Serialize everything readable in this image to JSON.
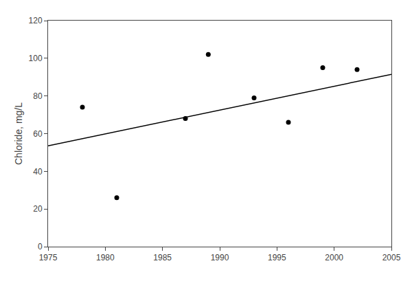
{
  "chart_data": {
    "type": "scatter",
    "ylabel": "Chloride, mg/L",
    "series": [
      {
        "type": "scatter",
        "color": "black",
        "marker": "circle",
        "x": [
          1978,
          1981,
          1987,
          1989,
          1993,
          1996,
          1999,
          2002
        ],
        "values": [
          74,
          26,
          68,
          102,
          79,
          66,
          95,
          94
        ]
      },
      {
        "type": "line",
        "color": "black",
        "line_style": "solid",
        "x": [
          1975,
          2005
        ],
        "values": [
          53.5,
          91.5
        ]
      }
    ],
    "xlim": [
      1975,
      2005
    ],
    "ylim": [
      0,
      120
    ],
    "xticks": [
      1975,
      1980,
      1985,
      1990,
      1995,
      2000,
      2005
    ],
    "yticks": [
      0,
      20,
      40,
      60,
      80,
      100,
      120
    ],
    "grid": false,
    "legend": false
  }
}
